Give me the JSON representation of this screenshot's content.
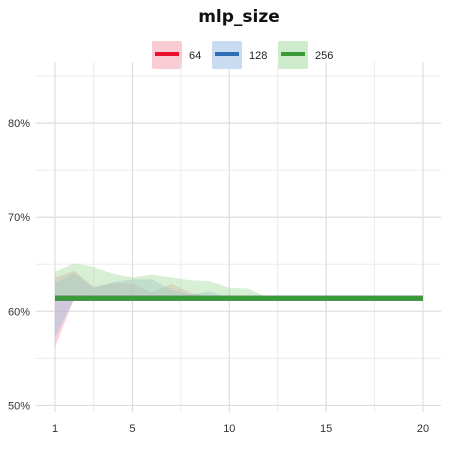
{
  "chart_data": {
    "type": "line",
    "title": "mlp_size",
    "xlabel": "",
    "ylabel": "",
    "xlim": [
      1,
      20
    ],
    "ylim": [
      49.3,
      86.5
    ],
    "x_ticks": [
      1,
      5,
      10,
      15,
      20
    ],
    "y_ticks": [
      50,
      60,
      70,
      80
    ],
    "y_tick_format": "percent",
    "grid": true,
    "legend_position": "top-center",
    "series": [
      {
        "name": "64",
        "color": "#e8112d",
        "band_color": "#f4a0ae",
        "x": [
          1,
          2,
          3,
          4,
          5,
          6,
          7,
          8,
          9,
          10,
          11,
          12,
          13,
          14,
          15,
          16,
          17,
          18,
          19,
          20
        ],
        "values": [
          61.4,
          61.4,
          61.4,
          61.4,
          61.4,
          61.4,
          61.4,
          61.4,
          61.4,
          61.4,
          61.4,
          61.4,
          61.4,
          61.4,
          61.4,
          61.4,
          61.4,
          61.4,
          61.4,
          61.4
        ],
        "band_upper": [
          63.6,
          64.3,
          62.6,
          63.0,
          63.0,
          62.0,
          62.9,
          62.0,
          61.4,
          61.4,
          61.4,
          61.4,
          61.4,
          61.4,
          61.4,
          61.4,
          61.4,
          61.4,
          61.4,
          61.4
        ],
        "band_lower": [
          56.2,
          61.4,
          61.4,
          61.4,
          61.4,
          61.4,
          61.4,
          61.4,
          61.4,
          61.4,
          61.4,
          61.4,
          61.4,
          61.4,
          61.4,
          61.4,
          61.4,
          61.4,
          61.4,
          61.4
        ]
      },
      {
        "name": "128",
        "color": "#2c6fb7",
        "band_color": "#9dbde3",
        "x": [
          1,
          2,
          3,
          4,
          5,
          6,
          7,
          8,
          9,
          10,
          11,
          12,
          13,
          14,
          15,
          16,
          17,
          18,
          19,
          20
        ],
        "values": [
          61.4,
          61.4,
          61.4,
          61.4,
          61.4,
          61.4,
          61.4,
          61.4,
          61.4,
          61.4,
          61.4,
          61.4,
          61.4,
          61.4,
          61.4,
          61.4,
          61.4,
          61.4,
          61.4,
          61.4
        ],
        "band_upper": [
          63.0,
          64.1,
          62.5,
          63.1,
          63.4,
          63.4,
          62.3,
          61.8,
          62.1,
          61.4,
          61.4,
          61.4,
          61.4,
          61.4,
          61.4,
          61.4,
          61.4,
          61.4,
          61.4,
          61.4
        ],
        "band_lower": [
          57.2,
          61.4,
          61.4,
          61.4,
          61.4,
          61.4,
          61.4,
          61.4,
          61.4,
          61.4,
          61.4,
          61.4,
          61.4,
          61.4,
          61.4,
          61.4,
          61.4,
          61.4,
          61.4,
          61.4
        ]
      },
      {
        "name": "256",
        "color": "#3a9a3a",
        "band_color": "#a6dba0",
        "x": [
          1,
          2,
          3,
          4,
          5,
          6,
          7,
          8,
          9,
          10,
          11,
          12,
          13,
          14,
          15,
          16,
          17,
          18,
          19,
          20
        ],
        "values": [
          61.4,
          61.4,
          61.4,
          61.4,
          61.4,
          61.4,
          61.4,
          61.4,
          61.4,
          61.4,
          61.4,
          61.4,
          61.4,
          61.4,
          61.4,
          61.4,
          61.4,
          61.4,
          61.4,
          61.4
        ],
        "band_upper": [
          64.2,
          65.1,
          64.7,
          64.0,
          63.6,
          63.9,
          63.6,
          63.3,
          63.2,
          62.5,
          62.4,
          61.4,
          61.4,
          61.4,
          61.4,
          61.4,
          61.4,
          61.4,
          61.4,
          61.4
        ],
        "band_lower": [
          61.4,
          61.4,
          61.4,
          61.4,
          61.4,
          61.4,
          61.4,
          61.4,
          61.4,
          61.4,
          61.4,
          61.4,
          61.4,
          61.4,
          61.4,
          61.4,
          61.4,
          61.4,
          61.4,
          61.4
        ]
      }
    ]
  }
}
